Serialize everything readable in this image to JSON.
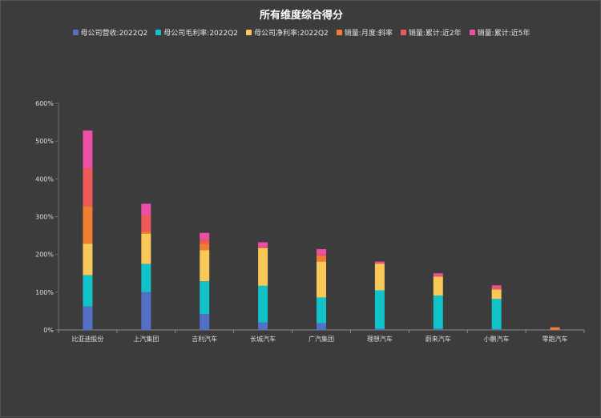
{
  "chart_data": {
    "type": "bar",
    "stacked": true,
    "title": "所有维度综合得分",
    "categories": [
      "比亚迪股份",
      "上汽集团",
      "吉利汽车",
      "长城汽车",
      "广汽集团",
      "理想汽车",
      "蔚来汽车",
      "小鹏汽车",
      "零跑汽车"
    ],
    "series": [
      {
        "name": "母公司营收:2022Q2",
        "color": "#5470c6",
        "values": [
          62,
          100,
          42,
          20,
          18,
          3,
          3,
          2,
          0
        ]
      },
      {
        "name": "母公司毛利率:2022Q2",
        "color": "#12c2c9",
        "values": [
          83,
          75,
          87,
          97,
          68,
          102,
          88,
          80,
          0
        ]
      },
      {
        "name": "母公司净利率:2022Q2",
        "color": "#fac858",
        "values": [
          83,
          80,
          82,
          100,
          95,
          70,
          50,
          25,
          0
        ]
      },
      {
        "name": "销量:月度:斜率",
        "color": "#f07d32",
        "values": [
          100,
          5,
          17,
          0,
          15,
          0,
          0,
          0,
          7
        ]
      },
      {
        "name": "销量:累计:近2年",
        "color": "#ee5a5a",
        "values": [
          100,
          44,
          11,
          3,
          4,
          2,
          3,
          6,
          0
        ]
      },
      {
        "name": "销量:累计:近5年",
        "color": "#ec4fa6",
        "values": [
          100,
          30,
          18,
          12,
          14,
          4,
          6,
          5,
          0
        ]
      }
    ],
    "ylim": [
      0,
      600
    ],
    "yticks": [
      0,
      100,
      200,
      300,
      400,
      500,
      600
    ],
    "ytick_labels": [
      "0%",
      "100%",
      "200%",
      "300%",
      "400%",
      "500%",
      "600%"
    ],
    "grid": false,
    "legend_position": "top-center"
  }
}
